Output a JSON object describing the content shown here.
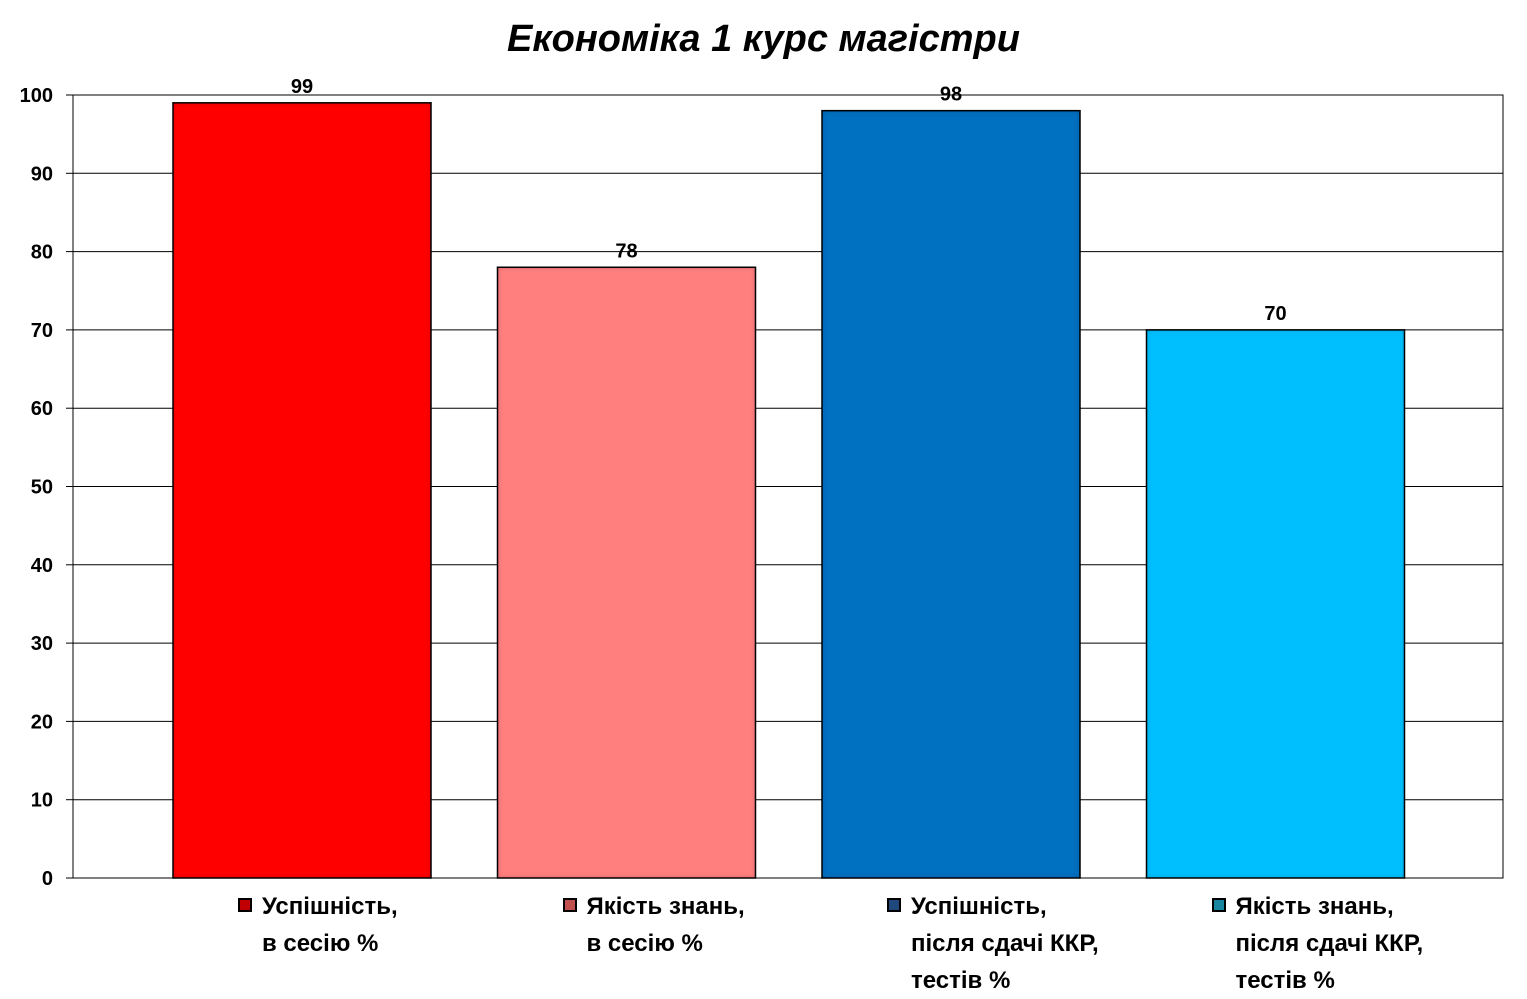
{
  "chart_data": {
    "type": "bar",
    "title": "Економіка 1 курс магістри",
    "ylim": [
      0,
      100
    ],
    "y_ticks": [
      0,
      10,
      20,
      30,
      40,
      50,
      60,
      70,
      80,
      90,
      100
    ],
    "grid": true,
    "legend_position": "bottom",
    "series": [
      {
        "label_lines": [
          "Успішність,",
          "в сесію %"
        ],
        "value": 99,
        "color": "#FF0000",
        "swatch_color": "#C00000"
      },
      {
        "label_lines": [
          "Якість знань,",
          "в сесію %"
        ],
        "value": 78,
        "color": "#FF7F7F",
        "swatch_color": "#C0504D"
      },
      {
        "label_lines": [
          "Успішність,",
          "після сдачі ККР,",
          "тестів %"
        ],
        "value": 98,
        "color": "#0070C0",
        "swatch_color": "#1F497D"
      },
      {
        "label_lines": [
          "Якість знань,",
          "після сдачі ККР,",
          "тестів %"
        ],
        "value": 70,
        "color": "#00BFFF",
        "swatch_color": "#17869E"
      }
    ]
  }
}
